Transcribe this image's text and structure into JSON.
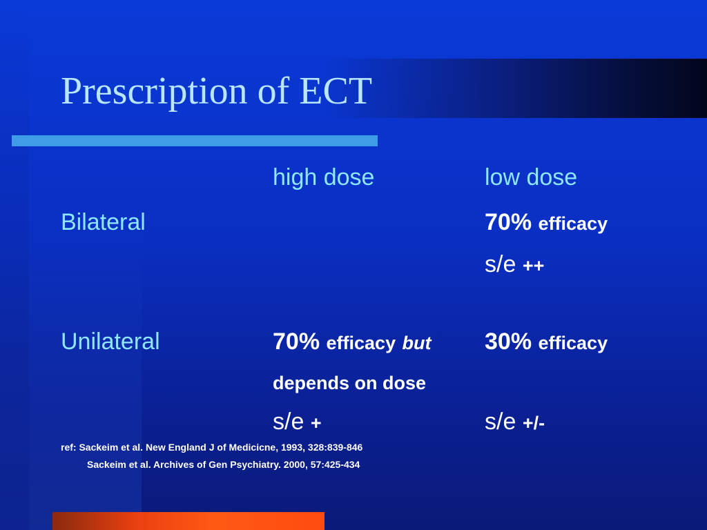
{
  "slide": {
    "title": "Prescription of ECT",
    "headers": {
      "high": "high dose",
      "low": "low dose"
    },
    "rows": {
      "bilateral": {
        "label": "Bilateral",
        "low_pct": "70%",
        "low_word": "efficacy",
        "low_se": "s/e",
        "low_se_mark": "++"
      },
      "unilateral": {
        "label": "Unilateral",
        "high_pct": "70%",
        "high_word": "efficacy",
        "high_but": "but",
        "high_line2": "depends on dose",
        "high_se": "s/e",
        "high_se_mark": "+",
        "low_pct": "30%",
        "low_word": "efficacy",
        "low_se": "s/e",
        "low_se_mark": "+/-"
      }
    },
    "refs": [
      "ref: Sackeim et al. New England J of Medicicne, 1993, 328:839-846",
      "Sackeim et al. Archives of Gen Psychiatry. 2000, 57:425-434"
    ]
  },
  "colors": {
    "title": "#b8e6ff",
    "labels": "#8fe6ff",
    "accent_bar": "#3e9de6",
    "footer_bar": "#ff5a14"
  }
}
